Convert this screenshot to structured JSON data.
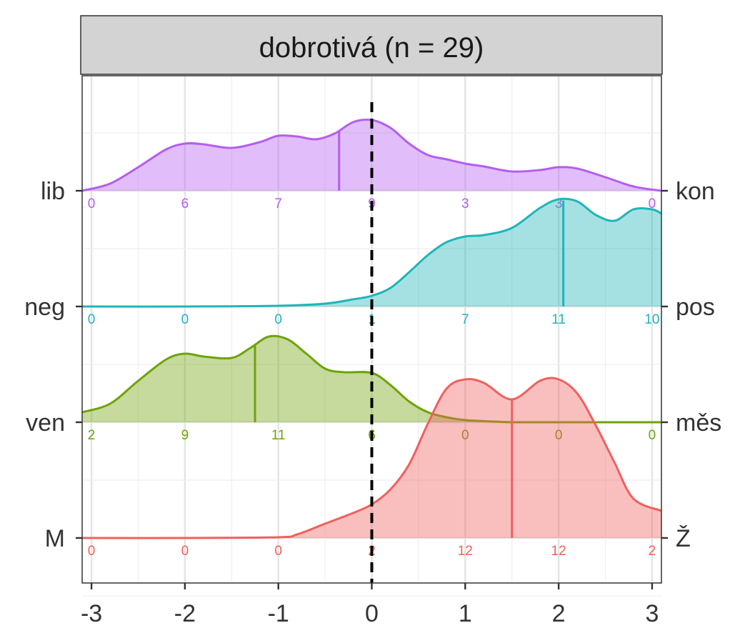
{
  "chart_data": {
    "type": "ridgeline",
    "title": "dobrotivá (n = 29)",
    "xlim": [
      -3.1,
      3.1
    ],
    "x_ticks": [
      "-3",
      "-2",
      "-1",
      "0",
      "1",
      "2",
      "3"
    ],
    "x_tick_values": [
      -3,
      -2,
      -1,
      0,
      1,
      2,
      3
    ],
    "grid": true,
    "reference_line_x": 0,
    "rows": [
      {
        "left_label": "lib",
        "right_label": "kon",
        "color": "#B55DF2",
        "median": -0.35,
        "count_x": [
          -3,
          -2,
          -1,
          0,
          1,
          2,
          3
        ],
        "counts": [
          "0",
          "6",
          "7",
          "9",
          "3",
          "3",
          "0"
        ],
        "density_x": [
          -3.1,
          -2.8,
          -2.5,
          -2.2,
          -2.0,
          -1.8,
          -1.5,
          -1.2,
          -1.0,
          -0.8,
          -0.6,
          -0.4,
          -0.2,
          0.0,
          0.2,
          0.4,
          0.6,
          0.8,
          1.0,
          1.2,
          1.5,
          1.8,
          2.0,
          2.2,
          2.5,
          2.8,
          3.1
        ],
        "density_y": [
          0.0,
          0.1,
          0.33,
          0.58,
          0.66,
          0.65,
          0.6,
          0.68,
          0.77,
          0.76,
          0.72,
          0.8,
          0.96,
          0.99,
          0.88,
          0.66,
          0.5,
          0.44,
          0.38,
          0.34,
          0.27,
          0.29,
          0.33,
          0.31,
          0.19,
          0.06,
          0.0
        ]
      },
      {
        "left_label": "neg",
        "right_label": "pos",
        "color": "#1FB5B8",
        "median": 2.05,
        "count_x": [
          -3,
          -2,
          -1,
          0,
          1,
          2,
          3
        ],
        "counts": [
          "0",
          "0",
          "0",
          "1",
          "7",
          "11",
          "10"
        ],
        "density_x": [
          -3.1,
          -2.0,
          -1.0,
          -0.5,
          -0.2,
          0.0,
          0.2,
          0.4,
          0.6,
          0.8,
          1.0,
          1.2,
          1.5,
          1.8,
          2.0,
          2.2,
          2.4,
          2.6,
          2.8,
          3.0,
          3.1
        ],
        "density_y": [
          0.0,
          0.0,
          0.01,
          0.04,
          0.1,
          0.15,
          0.26,
          0.48,
          0.72,
          0.9,
          0.98,
          1.0,
          1.1,
          1.38,
          1.5,
          1.47,
          1.28,
          1.2,
          1.36,
          1.36,
          1.3
        ]
      },
      {
        "left_label": "ven",
        "right_label": "měs",
        "color": "#6FA307",
        "median": -1.25,
        "count_x": [
          -3,
          -2,
          -1,
          0,
          1,
          2,
          3
        ],
        "counts": [
          "2",
          "9",
          "11",
          "6",
          "0",
          "0",
          "0"
        ],
        "density_x": [
          -3.1,
          -2.8,
          -2.5,
          -2.2,
          -2.0,
          -1.8,
          -1.5,
          -1.3,
          -1.1,
          -0.9,
          -0.7,
          -0.5,
          -0.3,
          0.0,
          0.2,
          0.4,
          0.6,
          0.8,
          1.0,
          1.3,
          1.5,
          2.0,
          3.1
        ],
        "density_y": [
          0.14,
          0.26,
          0.58,
          0.88,
          0.96,
          0.92,
          0.9,
          1.04,
          1.2,
          1.16,
          0.96,
          0.75,
          0.7,
          0.69,
          0.52,
          0.29,
          0.14,
          0.07,
          0.03,
          0.01,
          0.0,
          0.0,
          0.0
        ]
      },
      {
        "left_label": "M",
        "right_label": "Ž",
        "color": "#F0605D",
        "median": 1.5,
        "count_x": [
          -3,
          -2,
          -1,
          0,
          1,
          2,
          3
        ],
        "counts": [
          "0",
          "0",
          "0",
          "2",
          "12",
          "12",
          "2"
        ],
        "density_x": [
          -3.1,
          -2.0,
          -1.0,
          -0.8,
          -0.5,
          -0.2,
          0.0,
          0.2,
          0.4,
          0.6,
          0.8,
          1.0,
          1.2,
          1.5,
          1.8,
          2.0,
          2.2,
          2.4,
          2.6,
          2.8,
          3.1
        ],
        "density_y": [
          0.0,
          0.0,
          0.01,
          0.05,
          0.2,
          0.35,
          0.47,
          0.68,
          1.03,
          1.6,
          2.09,
          2.22,
          2.17,
          1.94,
          2.2,
          2.22,
          2.02,
          1.57,
          1.05,
          0.55,
          0.38
        ]
      }
    ]
  }
}
